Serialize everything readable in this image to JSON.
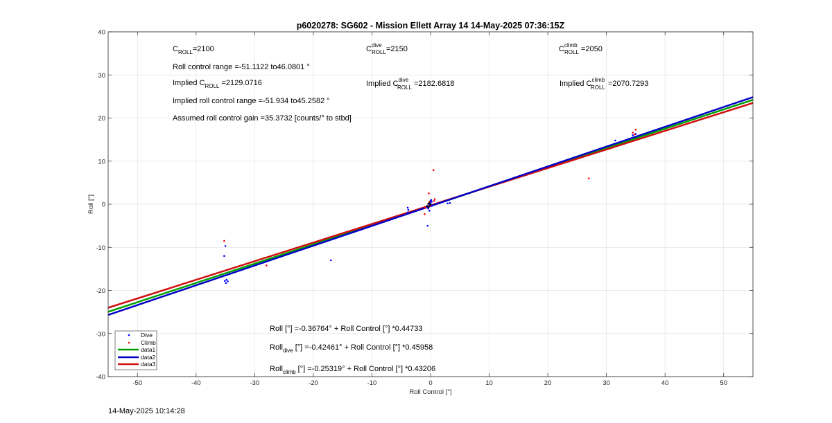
{
  "chart_data": {
    "type": "scatter",
    "title": "p6020278: SG602 - Mission Ellett Array 14 14-May-2025 07:36:15Z",
    "xlabel": "Roll Control [°]",
    "ylabel": "Roll [°]",
    "xlim": [
      -55,
      55
    ],
    "ylim": [
      -40,
      40
    ],
    "xticks": [
      -50,
      -40,
      -30,
      -20,
      -10,
      0,
      10,
      20,
      30,
      40,
      50
    ],
    "yticks": [
      -40,
      -30,
      -20,
      -10,
      0,
      10,
      20,
      30,
      40
    ],
    "grid": true,
    "legend_position": "bottom-left",
    "points": {
      "dive": {
        "name": "Dive",
        "color": "#0000ff",
        "x": [
          -35.2,
          -35.0,
          -34.8,
          -34.9,
          -35.1,
          -34.6,
          -17.0,
          -3.9,
          -3.8,
          -3.9,
          -0.5,
          -0.4,
          -0.3,
          -0.2,
          -0.1,
          0.0,
          0.1,
          0.2,
          -0.2,
          0.1,
          0.0,
          0.2,
          2.9,
          3.3,
          31.5,
          34.5,
          35.0
        ],
        "y": [
          -12.0,
          -9.7,
          -17.5,
          -18.3,
          -17.8,
          -17.9,
          -13.0,
          -0.8,
          -1.3,
          -1.9,
          -5.0,
          -1.0,
          -0.5,
          0.0,
          0.4,
          0.8,
          1.0,
          -0.4,
          -1.5,
          -0.2,
          0.2,
          0.6,
          0.2,
          0.3,
          14.8,
          16.0,
          16.3
        ]
      },
      "climb": {
        "name": "Climb",
        "color": "#ff0000",
        "x": [
          -35.2,
          -28.0,
          -1.0,
          -0.9,
          -0.3,
          -0.2,
          0.0,
          0.5,
          0.6,
          0.7,
          27.0,
          34.5,
          34.8,
          35.0
        ],
        "y": [
          -8.5,
          -14.2,
          -2.3,
          -0.8,
          2.5,
          0.6,
          -0.3,
          7.9,
          0.8,
          1.2,
          6.0,
          16.6,
          16.2,
          17.3
        ]
      },
      "black_cluster": {
        "color": "#000000",
        "x": [
          -0.6,
          -0.4,
          -0.2,
          0.0,
          -0.3
        ],
        "y": [
          -0.4,
          0.1,
          0.3,
          -0.1,
          -0.6
        ]
      }
    },
    "fits": [
      {
        "name": "data1",
        "color": "#00a000",
        "intercept": -0.36764,
        "slope": 0.44733
      },
      {
        "name": "data2",
        "color": "#0000c8",
        "intercept": -0.42461,
        "slope": 0.45958
      },
      {
        "name": "data3",
        "color": "#d01010",
        "intercept": -0.25319,
        "slope": 0.43206
      }
    ],
    "legend": [
      "Dive",
      "Climb",
      "data1",
      "data2",
      "data3"
    ]
  },
  "annotations": {
    "croll": {
      "base": "C",
      "sub": "ROLL",
      "value": "=2100"
    },
    "croll_dive": {
      "base": "C",
      "sup": "dive",
      "sub": "ROLL",
      "value": " =2150"
    },
    "croll_climb": {
      "base": "C",
      "sup": "climb",
      "sub": "ROLL",
      "value": " =2050"
    },
    "roll_range": "Roll control range =-51.1122 to46.0801 °",
    "implied_croll": {
      "prefix": "Implied C",
      "sub": "ROLL",
      "value": " =2129.0716"
    },
    "implied_croll_dive": {
      "prefix": "Implied C",
      "sup": "dive",
      "sub": "ROLL",
      "value": "=2182.6818"
    },
    "implied_croll_climb": {
      "prefix": "Implied C",
      "sup": "climb",
      "sub": "ROLL",
      "value": "=2070.7293"
    },
    "implied_range": "Implied roll control range =-51.934 to45.2582 °",
    "gain": "Assumed roll control gain =35.3732 [counts/° to stbd]",
    "eq_all": "Roll [°] =-0.36764° + Roll Control [°] *0.44733",
    "eq_dive": {
      "prefix": "Roll",
      "sub": "dive",
      "rest": " [°] =-0.42461° + Roll Control [°] *0.45958"
    },
    "eq_climb": {
      "prefix": "Roll",
      "sub": "climb",
      "rest": " [°] =-0.25319° + Roll Control [°] *0.43206"
    }
  },
  "timestamp": "14-May-2025 10:14:28"
}
